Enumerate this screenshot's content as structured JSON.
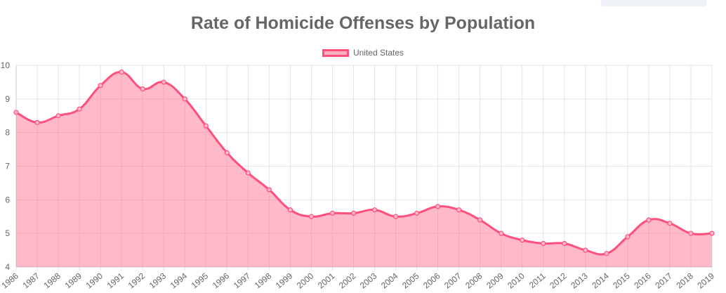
{
  "chart_data": {
    "type": "area",
    "title": "Rate of Homicide Offenses by Population",
    "xlabel": "",
    "ylabel": "",
    "ylim": [
      4,
      10
    ],
    "yticks": [
      4,
      5,
      6,
      7,
      8,
      9,
      10
    ],
    "grid": true,
    "legend_position": "top-center",
    "colors": {
      "line": "#ff4f7d",
      "fill": "rgba(255,99,132,0.45)",
      "grid": "#e5e5e5",
      "text": "#666666"
    },
    "categories": [
      "1986",
      "1987",
      "1988",
      "1989",
      "1990",
      "1991",
      "1992",
      "1993",
      "1994",
      "1995",
      "1996",
      "1997",
      "1998",
      "1999",
      "2000",
      "2001",
      "2002",
      "2003",
      "2004",
      "2005",
      "2006",
      "2007",
      "2008",
      "2009",
      "2010",
      "2011",
      "2012",
      "2013",
      "2014",
      "2015",
      "2016",
      "2017",
      "2018",
      "2019"
    ],
    "series": [
      {
        "name": "United States",
        "values": [
          8.6,
          8.3,
          8.5,
          8.7,
          9.4,
          9.8,
          9.3,
          9.5,
          9.0,
          8.2,
          7.4,
          6.8,
          6.3,
          5.7,
          5.5,
          5.6,
          5.6,
          5.7,
          5.5,
          5.6,
          5.8,
          5.7,
          5.4,
          5.0,
          4.8,
          4.7,
          4.7,
          4.5,
          4.4,
          4.9,
          5.4,
          5.3,
          5.0,
          5.0
        ]
      }
    ]
  }
}
